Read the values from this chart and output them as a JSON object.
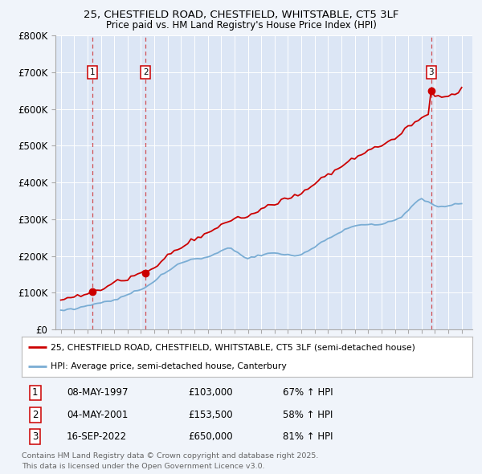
{
  "title_line1": "25, CHESTFIELD ROAD, CHESTFIELD, WHITSTABLE, CT5 3LF",
  "title_line2": "Price paid vs. HM Land Registry's House Price Index (HPI)",
  "bg_color": "#f0f4fa",
  "plot_bg_color": "#dce6f5",
  "grid_color": "#ffffff",
  "sale_color": "#cc0000",
  "hpi_color": "#7aadd4",
  "ylim": [
    0,
    800000
  ],
  "yticks": [
    0,
    100000,
    200000,
    300000,
    400000,
    500000,
    600000,
    700000,
    800000
  ],
  "ytick_labels": [
    "£0",
    "£100K",
    "£200K",
    "£300K",
    "£400K",
    "£500K",
    "£600K",
    "£700K",
    "£800K"
  ],
  "xlim_start": 1994.6,
  "xlim_end": 2025.8,
  "sale_dates": [
    1997.36,
    2001.34,
    2022.71
  ],
  "sale_prices": [
    103000,
    153500,
    650000
  ],
  "sale_labels": [
    "1",
    "2",
    "3"
  ],
  "annotations": [
    {
      "label": "1",
      "date": "08-MAY-1997",
      "price": "£103,000",
      "pct": "67% ↑ HPI"
    },
    {
      "label": "2",
      "date": "04-MAY-2001",
      "price": "£153,500",
      "pct": "58% ↑ HPI"
    },
    {
      "label": "3",
      "date": "16-SEP-2022",
      "price": "£650,000",
      "pct": "81% ↑ HPI"
    }
  ],
  "legend_sale_label": "25, CHESTFIELD ROAD, CHESTFIELD, WHITSTABLE, CT5 3LF (semi-detached house)",
  "legend_hpi_label": "HPI: Average price, semi-detached house, Canterbury",
  "footer": "Contains HM Land Registry data © Crown copyright and database right 2025.\nThis data is licensed under the Open Government Licence v3.0."
}
